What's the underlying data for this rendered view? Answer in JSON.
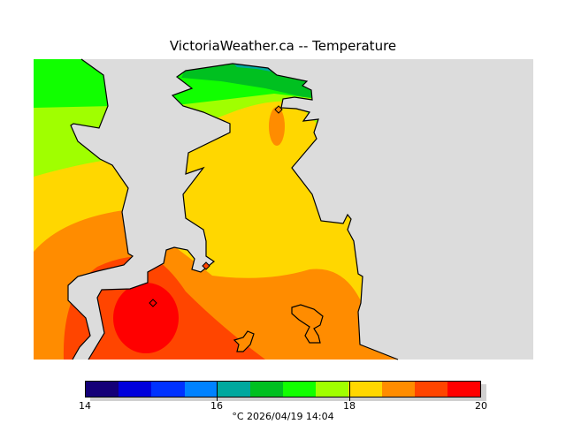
{
  "title": "VictoriaWeather.ca -- Temperature",
  "colors": {
    "water": "#dcdcdc",
    "bins": [
      "#140078",
      "#0000dc",
      "#0032ff",
      "#0082ff",
      "#00a89e",
      "#00c020",
      "#11ff00",
      "#a0ff00",
      "#ffd700",
      "#ff8c00",
      "#ff4500",
      "#ff0000"
    ]
  },
  "colorbar": {
    "min": 14,
    "max": 20,
    "tick_labels": [
      "14",
      "16",
      "18",
      "20"
    ],
    "units_timestamp": "°C  2026/04/19 14:04"
  }
}
